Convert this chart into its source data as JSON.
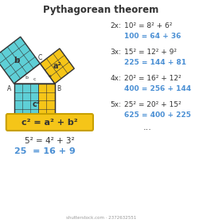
{
  "title": "Pythagorean theorem",
  "bg_color": "#ffffff",
  "cyan_color": "#5ecfd6",
  "yellow_color": "#f5c518",
  "blue_text_color": "#4a8fd4",
  "black_color": "#333333",
  "border_color": "#c8a000",
  "multiples": [
    {
      "label": "2x:",
      "eq1": "10² = 8² + 6²",
      "eq2": "100 = 64 + 36"
    },
    {
      "label": "3x:",
      "eq1": "15² = 12² + 9²",
      "eq2": "225 = 144 + 81"
    },
    {
      "label": "4x:",
      "eq1": "20² = 16² + 12²",
      "eq2": "400 = 256 + 144"
    },
    {
      "label": "5x:",
      "eq1": "25² = 20² + 15²",
      "eq2": "625 = 400 + 225"
    }
  ],
  "dots": "...",
  "formula": "c² = a² + b²",
  "base_line1": "5² = 4² + 3²",
  "base_line2": "25  = 16 + 9",
  "watermark": "shutterstock.com · 2372632551"
}
